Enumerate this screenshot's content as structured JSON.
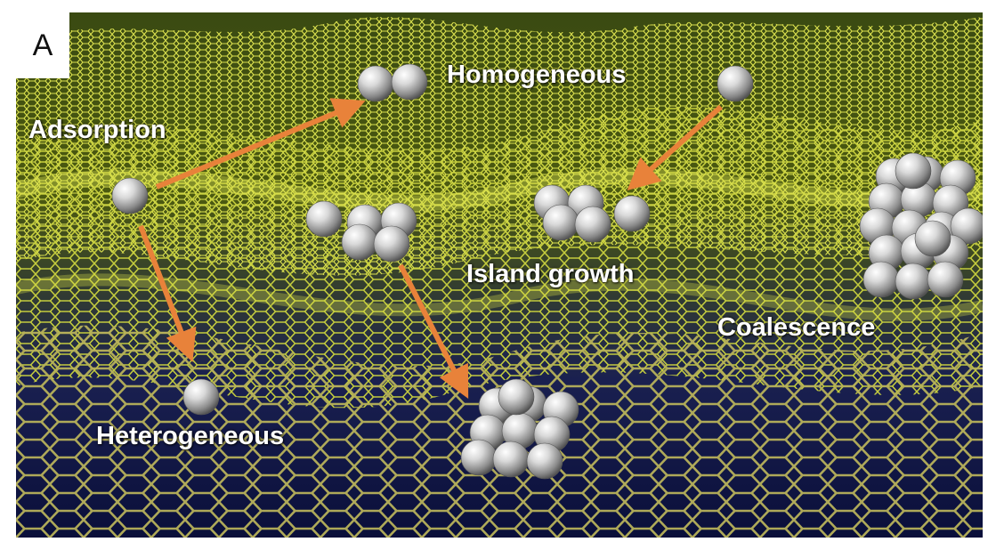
{
  "panel_letter": "A",
  "labels": {
    "adsorption": "Adsorption",
    "homogeneous": "Homogeneous",
    "heterogeneous": "Heterogeneous",
    "island_growth": "Island growth",
    "coalescence": "Coalescence"
  },
  "colors": {
    "arrow": "#e8823a",
    "mesh_light": "#d8e23a",
    "mesh_dark": "#2a2a10",
    "background_dark": "#0a0f3a",
    "sphere": "#c9c9c9"
  },
  "icons": {
    "atom": "silver-sphere",
    "arrow": "orange-arrow"
  }
}
